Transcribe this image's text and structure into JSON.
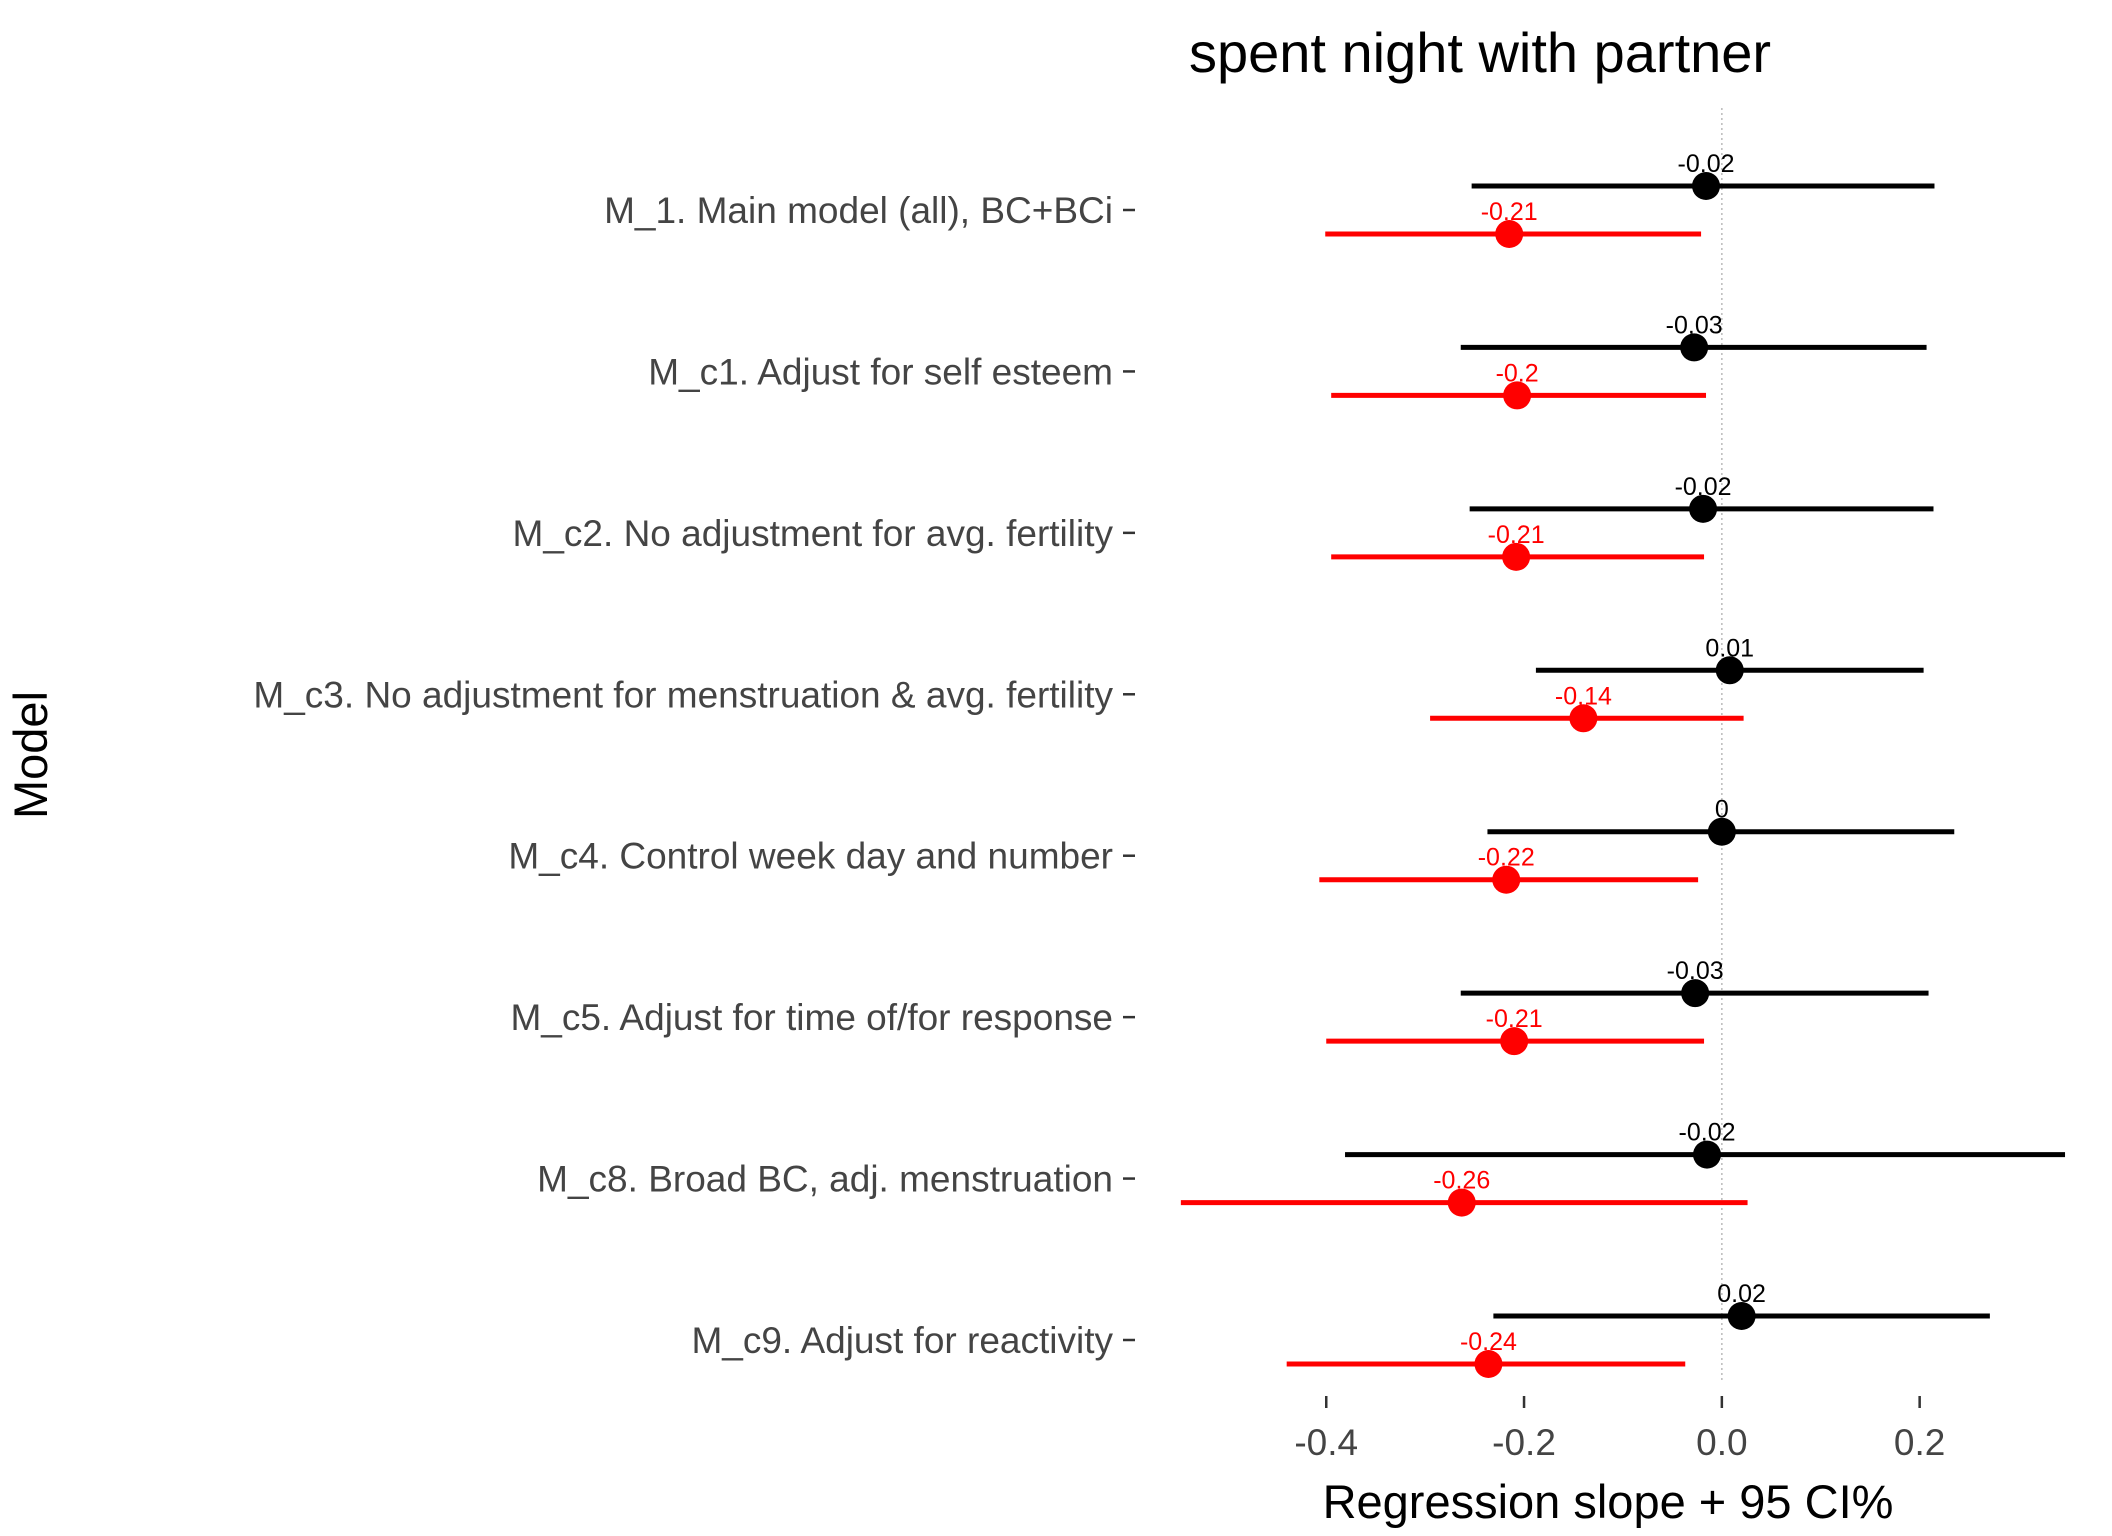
{
  "chart_data": {
    "type": "forest",
    "title": "spent night with partner",
    "xlabel": "Regression slope + 95 CI%",
    "ylabel": "Model",
    "xlim": [
      -0.56,
      0.35
    ],
    "xticks": [
      -0.4,
      -0.2,
      0.0,
      0.2
    ],
    "xtick_labels": [
      "-0.4",
      "-0.2",
      "0.0",
      "0.2"
    ],
    "reference_line": 0,
    "grid": false,
    "categories": [
      "M_1. Main model (all), BC+BCi",
      "M_c1. Adjust for self esteem",
      "M_c2. No adjustment for avg. fertility",
      "M_c3. No adjustment for menstruation & avg. fertility",
      "M_c4. Control week day and number",
      "M_c5. Adjust for time of/for response",
      "M_c8. Broad BC, adj. menstruation",
      "M_c9. Adjust for reactivity"
    ],
    "series": [
      {
        "color": "#000000",
        "estimates": [
          -0.016,
          -0.028,
          -0.019,
          0.008,
          0.0,
          -0.027,
          -0.015,
          0.02
        ],
        "lower": [
          -0.253,
          -0.264,
          -0.255,
          -0.188,
          -0.237,
          -0.264,
          -0.381,
          -0.231
        ],
        "upper": [
          0.215,
          0.207,
          0.214,
          0.204,
          0.235,
          0.209,
          0.347,
          0.271
        ],
        "labels": [
          "-0.02",
          "-0.03",
          "-0.02",
          "0.01",
          "0",
          "-0.03",
          "-0.02",
          "0.02"
        ]
      },
      {
        "color": "#ff0000",
        "estimates": [
          -0.215,
          -0.207,
          -0.208,
          -0.14,
          -0.218,
          -0.21,
          -0.263,
          -0.236
        ],
        "lower": [
          -0.401,
          -0.395,
          -0.395,
          -0.295,
          -0.407,
          -0.4,
          -0.547,
          -0.44
        ],
        "upper": [
          -0.021,
          -0.016,
          -0.018,
          0.022,
          -0.024,
          -0.018,
          0.026,
          -0.037
        ],
        "labels": [
          "-0.21",
          "-0.2",
          "-0.21",
          "-0.14",
          "-0.22",
          "-0.21",
          "-0.26",
          "-0.24"
        ]
      }
    ]
  }
}
